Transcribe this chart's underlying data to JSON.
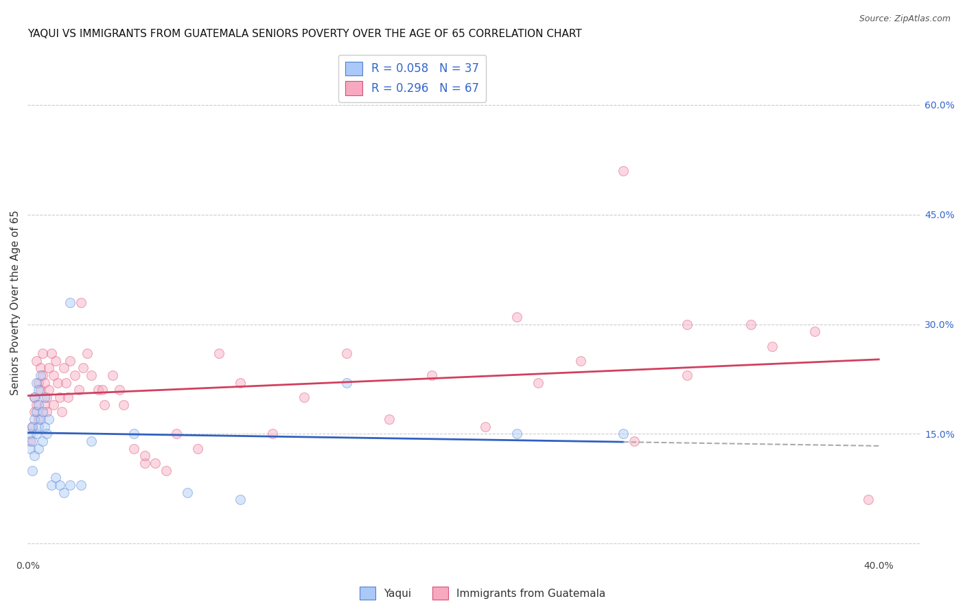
{
  "title": "YAQUI VS IMMIGRANTS FROM GUATEMALA SENIORS POVERTY OVER THE AGE OF 65 CORRELATION CHART",
  "source": "Source: ZipAtlas.com",
  "ylabel": "Seniors Poverty Over the Age of 65",
  "xlim": [
    0.0,
    0.42
  ],
  "ylim": [
    -0.02,
    0.68
  ],
  "right_yticks": [
    0.0,
    0.15,
    0.3,
    0.45,
    0.6
  ],
  "right_yticklabels": [
    "",
    "15.0%",
    "30.0%",
    "45.0%",
    "60.0%"
  ],
  "legend_entries": [
    {
      "label": "R = 0.058   N = 37"
    },
    {
      "label": "R = 0.296   N = 67"
    }
  ],
  "bottom_legend": [
    "Yaqui",
    "Immigrants from Guatemala"
  ],
  "yaqui_x": [
    0.001,
    0.001,
    0.002,
    0.002,
    0.002,
    0.003,
    0.003,
    0.003,
    0.004,
    0.004,
    0.004,
    0.005,
    0.005,
    0.005,
    0.005,
    0.006,
    0.006,
    0.007,
    0.007,
    0.008,
    0.008,
    0.009,
    0.01,
    0.011,
    0.013,
    0.015,
    0.017,
    0.02,
    0.025,
    0.03,
    0.05,
    0.075,
    0.1,
    0.15,
    0.23,
    0.28,
    0.02
  ],
  "yaqui_y": [
    0.13,
    0.15,
    0.1,
    0.14,
    0.16,
    0.12,
    0.17,
    0.2,
    0.15,
    0.18,
    0.22,
    0.13,
    0.16,
    0.19,
    0.21,
    0.17,
    0.23,
    0.14,
    0.18,
    0.16,
    0.2,
    0.15,
    0.17,
    0.08,
    0.09,
    0.08,
    0.07,
    0.08,
    0.08,
    0.14,
    0.15,
    0.07,
    0.06,
    0.22,
    0.15,
    0.15,
    0.33
  ],
  "guatemala_x": [
    0.001,
    0.002,
    0.003,
    0.003,
    0.004,
    0.004,
    0.005,
    0.005,
    0.006,
    0.006,
    0.007,
    0.007,
    0.008,
    0.008,
    0.009,
    0.009,
    0.01,
    0.01,
    0.011,
    0.012,
    0.012,
    0.013,
    0.014,
    0.015,
    0.016,
    0.017,
    0.018,
    0.019,
    0.02,
    0.022,
    0.024,
    0.026,
    0.028,
    0.03,
    0.033,
    0.036,
    0.04,
    0.043,
    0.05,
    0.055,
    0.06,
    0.07,
    0.08,
    0.09,
    0.1,
    0.115,
    0.13,
    0.15,
    0.17,
    0.19,
    0.215,
    0.24,
    0.26,
    0.285,
    0.31,
    0.34,
    0.37,
    0.395,
    0.23,
    0.28,
    0.31,
    0.35,
    0.025,
    0.035,
    0.045,
    0.055,
    0.065
  ],
  "guatemala_y": [
    0.14,
    0.16,
    0.18,
    0.2,
    0.19,
    0.25,
    0.17,
    0.22,
    0.24,
    0.21,
    0.23,
    0.26,
    0.19,
    0.22,
    0.2,
    0.18,
    0.24,
    0.21,
    0.26,
    0.23,
    0.19,
    0.25,
    0.22,
    0.2,
    0.18,
    0.24,
    0.22,
    0.2,
    0.25,
    0.23,
    0.21,
    0.24,
    0.26,
    0.23,
    0.21,
    0.19,
    0.23,
    0.21,
    0.13,
    0.11,
    0.11,
    0.15,
    0.13,
    0.26,
    0.22,
    0.15,
    0.2,
    0.26,
    0.17,
    0.23,
    0.16,
    0.22,
    0.25,
    0.14,
    0.23,
    0.3,
    0.29,
    0.06,
    0.31,
    0.51,
    0.3,
    0.27,
    0.33,
    0.21,
    0.19,
    0.12,
    0.1
  ],
  "yaqui_color": "#aac8f8",
  "guatemala_color": "#f8a8c0",
  "yaqui_edge_color": "#5080d0",
  "guatemala_edge_color": "#d85070",
  "yaqui_line_color": "#3060c0",
  "guatemala_line_color": "#d04060",
  "background_color": "#ffffff",
  "grid_color": "#cccccc",
  "title_fontsize": 11,
  "axis_label_fontsize": 11,
  "tick_fontsize": 10,
  "marker_size": 100,
  "marker_alpha": 0.45,
  "edge_alpha": 0.7,
  "linewidth": 0.8
}
